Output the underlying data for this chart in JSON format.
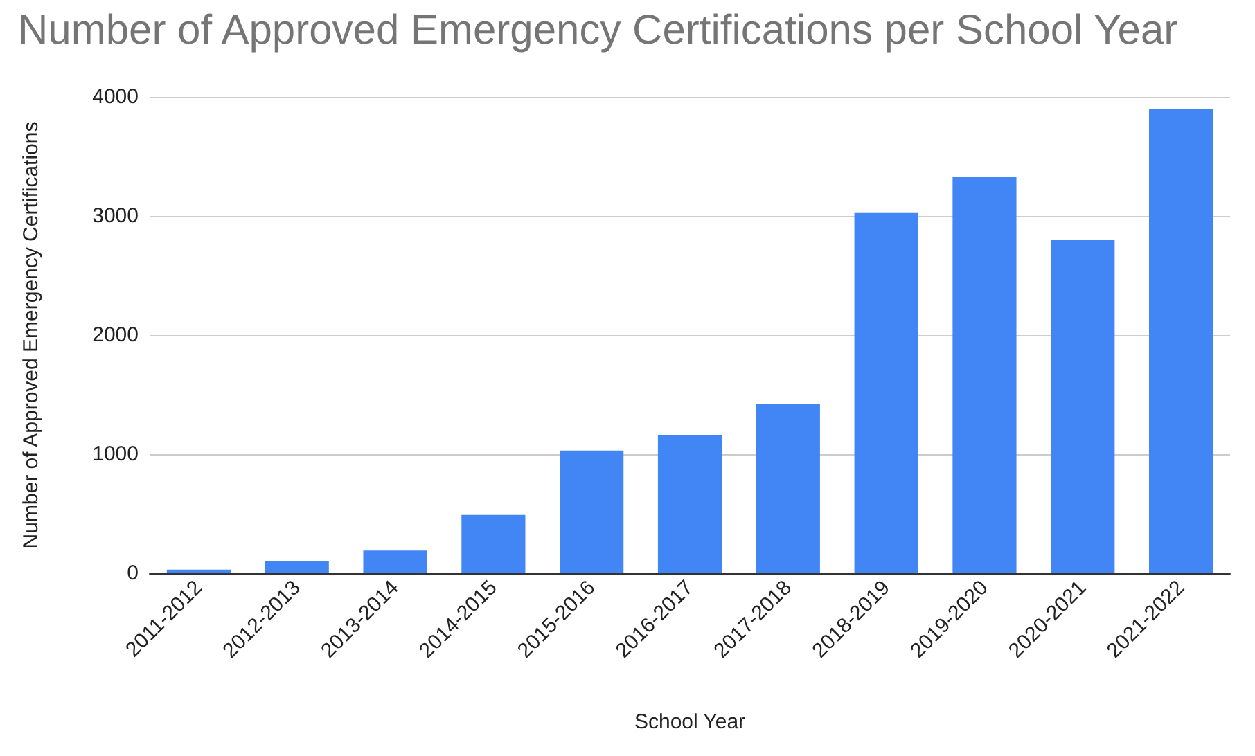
{
  "chart_data": {
    "type": "bar",
    "title": "Number of Approved Emergency Certifications per School Year",
    "xlabel": "School Year",
    "ylabel": "Number of Approved Emergency Certifications",
    "categories": [
      "2011-2012",
      "2012-2013",
      "2013-2014",
      "2014-2015",
      "2015-2016",
      "2016-2017",
      "2017-2018",
      "2018-2019",
      "2019-2020",
      "2020-2021",
      "2021-2022"
    ],
    "series": [
      {
        "color": "#4285f4",
        "values": [
          30,
          100,
          190,
          490,
          1030,
          1160,
          1420,
          3030,
          3330,
          2800,
          3900
        ]
      }
    ],
    "ylim": [
      0,
      4000
    ],
    "yticks": [
      0,
      1000,
      2000,
      3000,
      4000
    ],
    "grid": "y"
  }
}
